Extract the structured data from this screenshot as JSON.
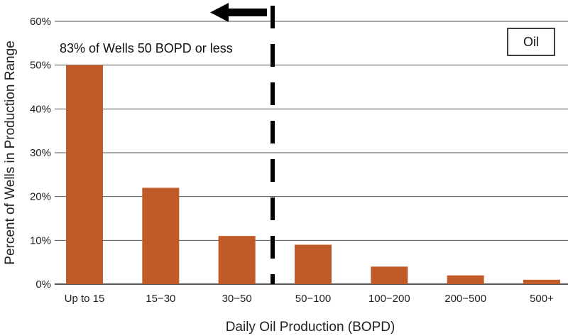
{
  "chart_data": {
    "type": "bar",
    "categories": [
      "Up to 15",
      "15−30",
      "30−50",
      "50−100",
      "100−200",
      "200−500",
      "500+"
    ],
    "series": [
      {
        "name": "Oil",
        "values": [
          50,
          22,
          11,
          9,
          4,
          2,
          1
        ],
        "color": "#c05a28"
      }
    ],
    "xlabel": "Daily Oil Production (BOPD)",
    "ylabel": "Percent of Wells in Production Range",
    "ylim": [
      0,
      60
    ],
    "yticks": [
      0,
      10,
      20,
      30,
      40,
      50,
      60
    ],
    "ytick_labels": [
      "0%",
      "10%",
      "20%",
      "30%",
      "40%",
      "50%",
      "60%"
    ],
    "grid": true,
    "legend": {
      "label": "Oil",
      "placement": "top-right"
    },
    "annotation": {
      "text": "83% of Wells 50 BOPD or less",
      "divider_between": [
        "30−50",
        "50−100"
      ],
      "arrow_direction": "left"
    }
  }
}
